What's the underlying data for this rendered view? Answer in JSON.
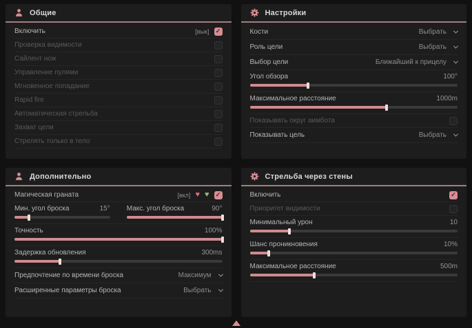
{
  "accent": "#d78d93",
  "panels": {
    "general": {
      "title": "Общие",
      "rows": [
        {
          "label": "Включить",
          "tag": "[вык]",
          "checked": true
        },
        {
          "label": "Проверка видимости",
          "checked": false
        },
        {
          "label": "Сайлент нож",
          "checked": false
        },
        {
          "label": "Управление пулями",
          "checked": false
        },
        {
          "label": "Мгновенное попадание",
          "checked": false
        },
        {
          "label": "Rapid fire",
          "checked": false
        },
        {
          "label": "Автоматическая стрельба",
          "checked": false
        },
        {
          "label": "Захват цели",
          "checked": false
        },
        {
          "label": "Стрелять только в тело",
          "checked": false
        }
      ]
    },
    "settings": {
      "title": "Настройки",
      "rows": [
        {
          "type": "dropdown",
          "label": "Кости",
          "value": "Выбрать"
        },
        {
          "type": "dropdown",
          "label": "Роль цели",
          "value": "Выбрать"
        },
        {
          "type": "dropdown",
          "label": "Выбор цели",
          "value": "Ближайший к прицелу"
        },
        {
          "type": "slider",
          "label": "Угол обзора",
          "value": "100°",
          "fill": 28
        },
        {
          "type": "slider",
          "label": "Максимальное расстояние",
          "value": "1000m",
          "fill": 66
        },
        {
          "type": "checkbox",
          "label": "Показывать округ аимбота",
          "checked": false
        },
        {
          "type": "dropdown",
          "label": "Показывать цель",
          "value": "Выбрать"
        }
      ]
    },
    "additional": {
      "title": "Дополнительно",
      "magic": {
        "label": "Магическая граната",
        "tag": "[вкл]",
        "checked": true
      },
      "sliders": [
        {
          "label": "Мин. угол броска",
          "value": "15°",
          "fill": 15
        },
        {
          "label": "Макс. угол броска",
          "value": "90°",
          "fill": 100
        },
        {
          "label": "Точность",
          "value": "100%",
          "fill": 100
        },
        {
          "label": "Задержка обновления",
          "value": "300ms",
          "fill": 22
        }
      ],
      "dropdowns": [
        {
          "label": "Предпочтение по времени броска",
          "value": "Максимум"
        },
        {
          "label": "Расширенные параметры броска",
          "value": "Выбрать"
        }
      ]
    },
    "walls": {
      "title": "Стрельба через стены",
      "rows": [
        {
          "type": "checkbox",
          "label": "Включить",
          "checked": true
        },
        {
          "type": "checkbox",
          "label": "Приоритет видимости",
          "checked": false
        },
        {
          "type": "slider",
          "label": "Минимальный урон",
          "value": "10",
          "fill": 19
        },
        {
          "type": "slider",
          "label": "Шанс проникновения",
          "value": "10%",
          "fill": 9
        },
        {
          "type": "slider",
          "label": "Максимальное расстояние",
          "value": "500m",
          "fill": 31
        }
      ]
    }
  }
}
